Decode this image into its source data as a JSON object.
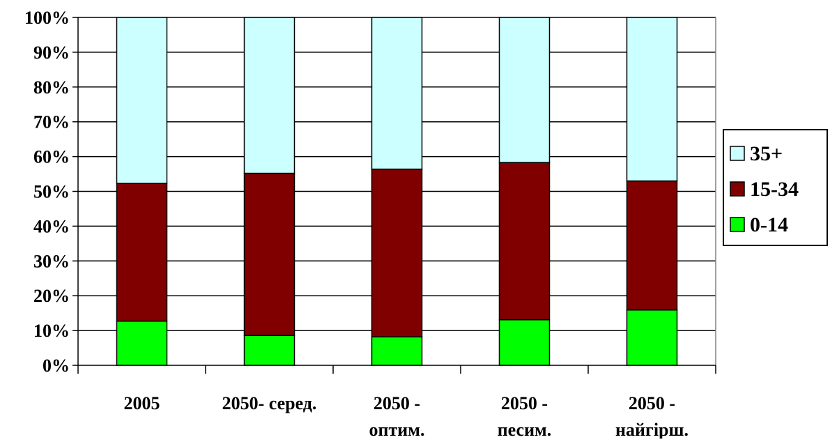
{
  "chart_data": {
    "type": "bar",
    "stacked": true,
    "percent": true,
    "title": "",
    "xlabel": "",
    "ylabel": "",
    "ylim": [
      0,
      100
    ],
    "y_ticks": [
      "0%",
      "10%",
      "20%",
      "30%",
      "40%",
      "50%",
      "60%",
      "70%",
      "80%",
      "90%",
      "100%"
    ],
    "grid": true,
    "legend_position": "right",
    "categories": [
      [
        "2005"
      ],
      [
        "2050- серед."
      ],
      [
        "2050 -",
        "оптим."
      ],
      [
        "2050 -",
        "песим."
      ],
      [
        "2050 -",
        "найгірш."
      ]
    ],
    "series": [
      {
        "name": "0-14",
        "color": "#00FF00",
        "values": [
          12.7,
          8.6,
          8.2,
          13.1,
          15.9
        ]
      },
      {
        "name": "15-34",
        "color": "#800000",
        "values": [
          39.6,
          46.6,
          48.2,
          45.2,
          37.1
        ]
      },
      {
        "name": "35+",
        "color": "#CCFFFF",
        "values": [
          47.7,
          44.8,
          43.6,
          41.7,
          47.0
        ]
      }
    ],
    "legend_order": [
      "35+",
      "15-34",
      "0-14"
    ]
  }
}
